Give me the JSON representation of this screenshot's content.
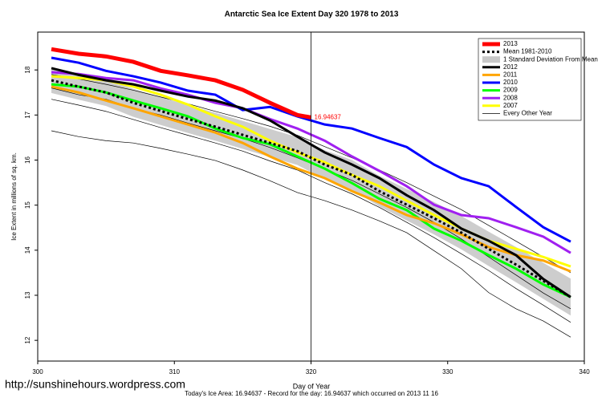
{
  "chart_data": {
    "type": "line",
    "title": "Antarctic Sea Ice Extent Day 320 1978 to 2013",
    "xlabel": "Day of Year",
    "ylabel": "Ice Extent in millions of sq. km.",
    "footer": "Today's Ice Area: 16.94637  - Record for the day: 16.94637 which occurred on 2013 11 16",
    "watermark": "http://sunshinehours.wordpress.com",
    "xlim": [
      300,
      340
    ],
    "xticks": [
      300,
      310,
      320,
      330,
      340
    ],
    "ylim": [
      11.54,
      18.84
    ],
    "yticks": [
      12,
      13,
      14,
      15,
      16,
      17,
      18
    ],
    "vline": 320,
    "x": [
      301,
      303,
      305,
      307,
      309,
      311,
      313,
      315,
      317,
      319,
      321,
      323,
      325,
      327,
      329,
      331,
      333,
      335,
      337,
      339
    ],
    "series": [
      {
        "name": "2013",
        "color": "#ff0000",
        "x": [
          301,
          303,
          305,
          307,
          309,
          311,
          313,
          315,
          317,
          319,
          320
        ],
        "values": [
          18.46,
          18.36,
          18.3,
          18.18,
          17.98,
          17.88,
          17.77,
          17.56,
          17.27,
          17.0,
          16.94637
        ]
      },
      {
        "name": "Mean 1981-2010",
        "color": "#000000",
        "style": "dashed",
        "values": [
          17.77,
          17.63,
          17.5,
          17.27,
          17.09,
          16.91,
          16.74,
          16.56,
          16.38,
          16.2,
          15.9,
          15.67,
          15.31,
          15.01,
          14.71,
          14.39,
          14.03,
          13.68,
          13.32,
          12.96
        ]
      },
      {
        "name": "1 Standard Deviation From Mean",
        "color": "#c8c8c8",
        "upper": [
          18.05,
          17.92,
          17.8,
          17.58,
          17.4,
          17.22,
          17.05,
          16.87,
          16.69,
          16.51,
          16.22,
          16.0,
          15.65,
          15.36,
          15.07,
          14.76,
          14.41,
          14.07,
          13.72,
          13.37
        ],
        "lower": [
          17.49,
          17.34,
          17.2,
          16.96,
          16.78,
          16.6,
          16.43,
          16.25,
          16.07,
          15.89,
          15.58,
          15.34,
          14.97,
          14.66,
          14.35,
          14.02,
          13.65,
          13.29,
          12.92,
          12.55
        ]
      },
      {
        "name": "2012",
        "color": "#000000",
        "values": [
          18.04,
          17.89,
          17.77,
          17.68,
          17.54,
          17.41,
          17.32,
          17.15,
          16.88,
          16.52,
          16.17,
          15.9,
          15.6,
          15.22,
          14.89,
          14.48,
          14.21,
          13.89,
          13.36,
          12.96
        ]
      },
      {
        "name": "2011",
        "color": "#ffa500",
        "values": [
          17.63,
          17.5,
          17.32,
          17.15,
          16.97,
          16.79,
          16.61,
          16.38,
          16.08,
          15.81,
          15.6,
          15.31,
          15.06,
          14.78,
          14.6,
          14.35,
          14.07,
          13.89,
          13.77,
          13.53
        ]
      },
      {
        "name": "2010",
        "color": "#0000ff",
        "values": [
          18.27,
          18.16,
          17.98,
          17.86,
          17.72,
          17.54,
          17.45,
          17.11,
          17.18,
          16.97,
          16.79,
          16.7,
          16.49,
          16.29,
          15.9,
          15.6,
          15.42,
          14.96,
          14.51,
          14.19
        ]
      },
      {
        "name": "2009",
        "color": "#00ff00",
        "values": [
          17.68,
          17.63,
          17.5,
          17.32,
          17.15,
          16.97,
          16.7,
          16.49,
          16.35,
          16.08,
          15.81,
          15.49,
          15.14,
          14.89,
          14.48,
          14.21,
          13.89,
          13.59,
          13.24,
          12.96
        ]
      },
      {
        "name": "2008",
        "color": "#a020f0",
        "values": [
          17.95,
          17.91,
          17.82,
          17.77,
          17.59,
          17.45,
          17.27,
          17.15,
          16.91,
          16.7,
          16.43,
          16.08,
          15.76,
          15.42,
          15.01,
          14.78,
          14.71,
          14.51,
          14.3,
          13.94
        ]
      },
      {
        "name": "2007",
        "color": "#ffff00",
        "values": [
          17.86,
          17.82,
          17.77,
          17.63,
          17.45,
          17.23,
          16.97,
          16.74,
          16.43,
          16.17,
          15.95,
          15.67,
          15.42,
          15.1,
          14.78,
          14.48,
          14.21,
          14.03,
          13.85,
          13.64
        ]
      },
      {
        "name": "Every Other Year",
        "color": "#000000",
        "lines": [
          [
            16.65,
            16.52,
            16.43,
            16.38,
            16.26,
            16.13,
            15.99,
            15.78,
            15.54,
            15.28,
            15.1,
            14.89,
            14.65,
            14.39,
            13.99,
            13.59,
            13.06,
            12.7,
            12.43,
            12.07
          ],
          [
            17.9,
            17.8,
            17.68,
            17.55,
            17.4,
            17.25,
            17.08,
            16.92,
            16.75,
            16.55,
            16.3,
            16.05,
            15.78,
            15.5,
            15.2,
            14.9,
            14.55,
            14.2,
            13.85,
            13.5
          ],
          [
            17.35,
            17.22,
            17.08,
            16.9,
            16.72,
            16.55,
            16.38,
            16.2,
            15.98,
            15.78,
            15.5,
            15.25,
            14.95,
            14.62,
            14.28,
            13.92,
            13.55,
            13.15,
            12.78,
            12.4
          ],
          [
            17.6,
            17.45,
            17.35,
            17.15,
            17.0,
            16.82,
            16.65,
            16.48,
            16.28,
            16.05,
            15.8,
            15.55,
            15.25,
            14.95,
            14.62,
            14.25,
            13.85,
            13.45,
            13.05,
            12.7
          ]
        ]
      }
    ]
  }
}
